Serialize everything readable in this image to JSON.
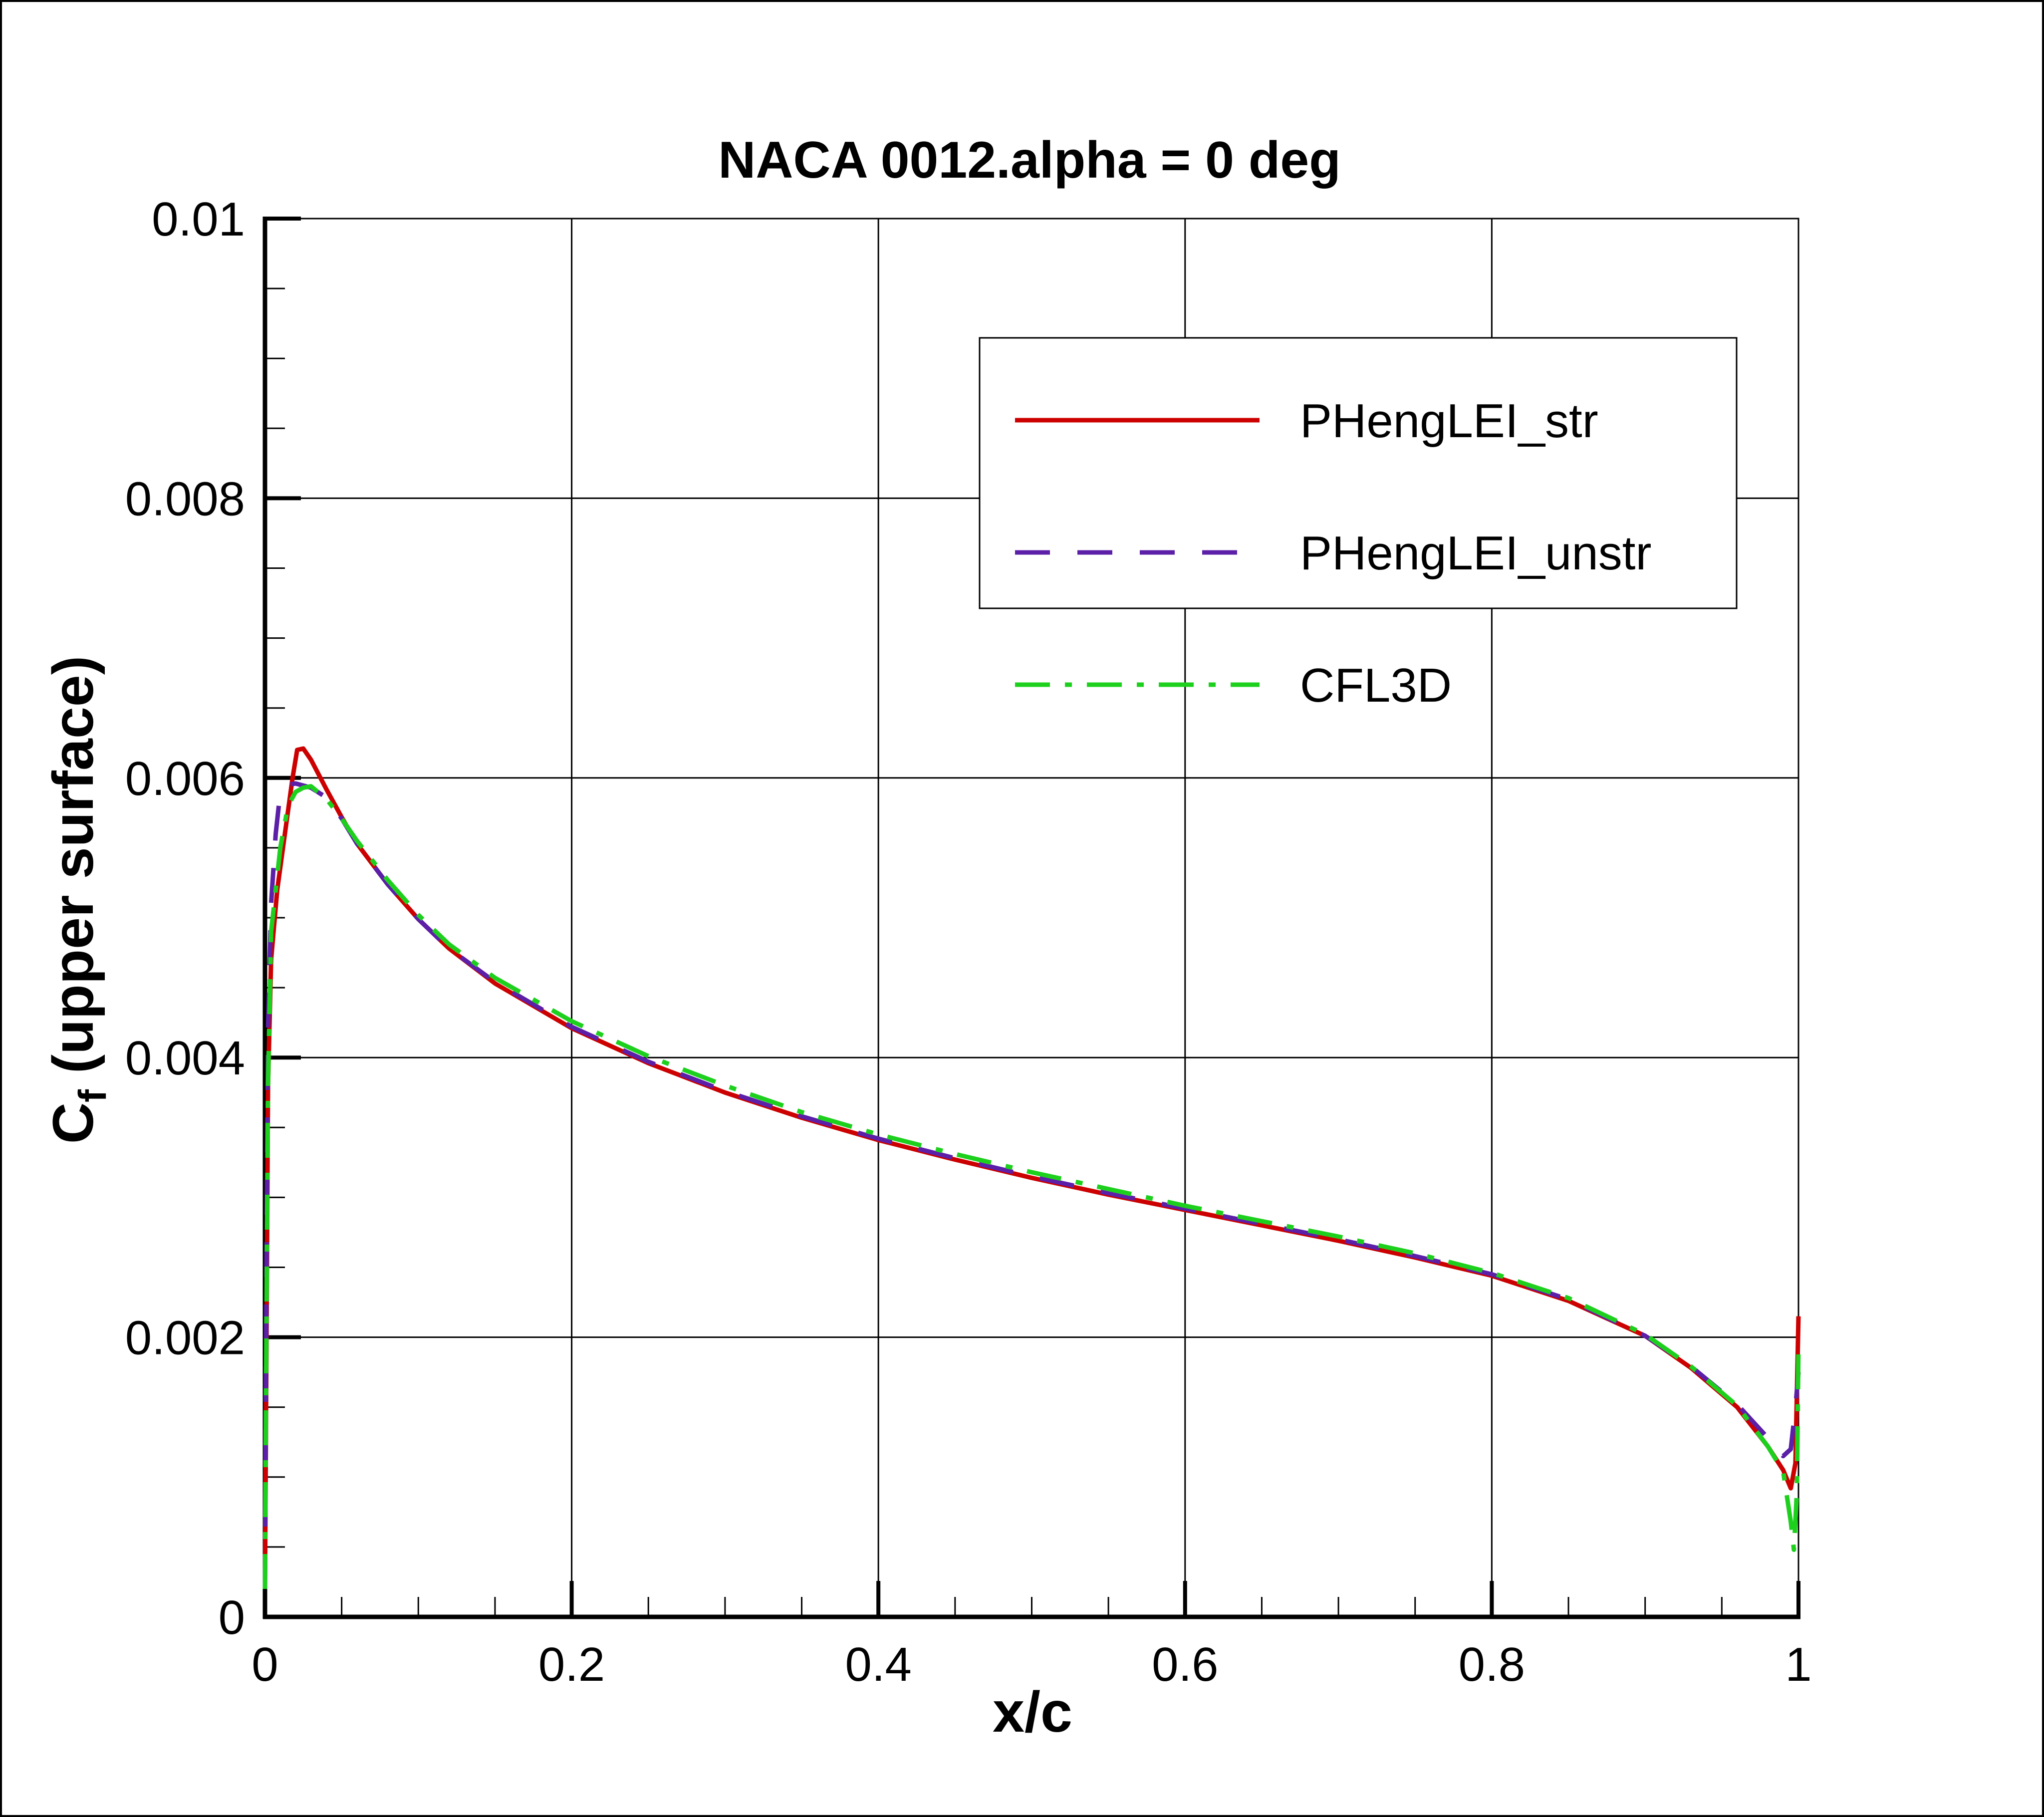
{
  "chart_data": {
    "type": "line",
    "title": "NACA 0012.alpha = 0 deg",
    "xlabel": "x/c",
    "ylabel": "C",
    "ylabel_subscript": "f",
    "ylabel_suffix": " (upper surface)",
    "xlim": [
      0,
      1
    ],
    "ylim": [
      0,
      0.01
    ],
    "x_ticks": [
      0,
      0.2,
      0.4,
      0.6,
      0.8,
      1
    ],
    "x_tick_labels": [
      "0",
      "0.2",
      "0.4",
      "0.6",
      "0.8",
      "1"
    ],
    "y_ticks": [
      0,
      0.002,
      0.004,
      0.006,
      0.008,
      0.01
    ],
    "y_tick_labels": [
      "0",
      "0.002",
      "0.004",
      "0.006",
      "0.008",
      "0.01"
    ],
    "grid": true,
    "legend_position": "top-right",
    "series": [
      {
        "name": "PHengLEI_str",
        "color": "#cc0000",
        "dash": "solid",
        "points": [
          [
            0.0,
            0.0002
          ],
          [
            0.001,
            0.002
          ],
          [
            0.002,
            0.0038
          ],
          [
            0.004,
            0.0047
          ],
          [
            0.008,
            0.0052
          ],
          [
            0.013,
            0.0056
          ],
          [
            0.018,
            0.006
          ],
          [
            0.021,
            0.0062
          ],
          [
            0.025,
            0.00621
          ],
          [
            0.03,
            0.00613
          ],
          [
            0.04,
            0.00592
          ],
          [
            0.05,
            0.00572
          ],
          [
            0.06,
            0.00553
          ],
          [
            0.08,
            0.00524
          ],
          [
            0.1,
            0.00499
          ],
          [
            0.12,
            0.00478
          ],
          [
            0.15,
            0.00453
          ],
          [
            0.2,
            0.00421
          ],
          [
            0.25,
            0.00396
          ],
          [
            0.3,
            0.00375
          ],
          [
            0.35,
            0.00357
          ],
          [
            0.4,
            0.00341
          ],
          [
            0.45,
            0.00327
          ],
          [
            0.5,
            0.00314
          ],
          [
            0.55,
            0.00302
          ],
          [
            0.6,
            0.00291
          ],
          [
            0.65,
            0.0028
          ],
          [
            0.7,
            0.00269
          ],
          [
            0.75,
            0.00257
          ],
          [
            0.8,
            0.00244
          ],
          [
            0.85,
            0.00226
          ],
          [
            0.9,
            0.00201
          ],
          [
            0.93,
            0.00178
          ],
          [
            0.96,
            0.0015
          ],
          [
            0.98,
            0.00122
          ],
          [
            0.99,
            0.00105
          ],
          [
            0.995,
            0.00092
          ],
          [
            0.998,
            0.0011
          ],
          [
            1.0,
            0.00215
          ]
        ]
      },
      {
        "name": "PHengLEI_unstr",
        "color": "#5b1fa8",
        "dash": "dashed",
        "points": [
          [
            0.0,
            0.0002
          ],
          [
            0.001,
            0.0025
          ],
          [
            0.002,
            0.0042
          ],
          [
            0.004,
            0.0051
          ],
          [
            0.007,
            0.0056
          ],
          [
            0.01,
            0.0059
          ],
          [
            0.014,
            0.00595
          ],
          [
            0.02,
            0.00596
          ],
          [
            0.03,
            0.00593
          ],
          [
            0.04,
            0.00586
          ],
          [
            0.05,
            0.00571
          ],
          [
            0.06,
            0.00553
          ],
          [
            0.08,
            0.00524
          ],
          [
            0.1,
            0.00499
          ],
          [
            0.12,
            0.00478
          ],
          [
            0.15,
            0.00454
          ],
          [
            0.2,
            0.00422
          ],
          [
            0.25,
            0.00397
          ],
          [
            0.3,
            0.00376
          ],
          [
            0.35,
            0.00358
          ],
          [
            0.4,
            0.00342
          ],
          [
            0.45,
            0.00328
          ],
          [
            0.5,
            0.00315
          ],
          [
            0.55,
            0.00303
          ],
          [
            0.6,
            0.00292
          ],
          [
            0.65,
            0.00281
          ],
          [
            0.7,
            0.0027
          ],
          [
            0.75,
            0.00258
          ],
          [
            0.8,
            0.00245
          ],
          [
            0.85,
            0.00227
          ],
          [
            0.9,
            0.00201
          ],
          [
            0.93,
            0.00179
          ],
          [
            0.96,
            0.00152
          ],
          [
            0.98,
            0.00128
          ],
          [
            0.99,
            0.00115
          ],
          [
            0.995,
            0.0012
          ],
          [
            0.998,
            0.0015
          ],
          [
            1.0,
            0.00175
          ]
        ]
      },
      {
        "name": "CFL3D",
        "color": "#1ed01e",
        "dash": "dash-dot",
        "points": [
          [
            0.0,
            0.0002
          ],
          [
            0.001,
            0.0022
          ],
          [
            0.002,
            0.0038
          ],
          [
            0.004,
            0.0049
          ],
          [
            0.007,
            0.0052
          ],
          [
            0.01,
            0.0055
          ],
          [
            0.015,
            0.0058
          ],
          [
            0.02,
            0.0059
          ],
          [
            0.025,
            0.00593
          ],
          [
            0.03,
            0.00594
          ],
          [
            0.04,
            0.00585
          ],
          [
            0.05,
            0.00571
          ],
          [
            0.06,
            0.00555
          ],
          [
            0.08,
            0.00527
          ],
          [
            0.1,
            0.00502
          ],
          [
            0.12,
            0.00481
          ],
          [
            0.15,
            0.00457
          ],
          [
            0.2,
            0.00426
          ],
          [
            0.25,
            0.00401
          ],
          [
            0.3,
            0.0038
          ],
          [
            0.35,
            0.00361
          ],
          [
            0.4,
            0.00345
          ],
          [
            0.45,
            0.00331
          ],
          [
            0.5,
            0.00318
          ],
          [
            0.55,
            0.00306
          ],
          [
            0.6,
            0.00294
          ],
          [
            0.65,
            0.00283
          ],
          [
            0.7,
            0.00272
          ],
          [
            0.75,
            0.0026
          ],
          [
            0.8,
            0.00246
          ],
          [
            0.85,
            0.00228
          ],
          [
            0.9,
            0.00202
          ],
          [
            0.93,
            0.00179
          ],
          [
            0.96,
            0.00151
          ],
          [
            0.98,
            0.00122
          ],
          [
            0.99,
            0.00104
          ],
          [
            0.995,
            0.00068
          ],
          [
            0.997,
            0.00048
          ],
          [
            0.999,
            0.0009
          ],
          [
            1.0,
            0.00195
          ]
        ]
      }
    ]
  }
}
